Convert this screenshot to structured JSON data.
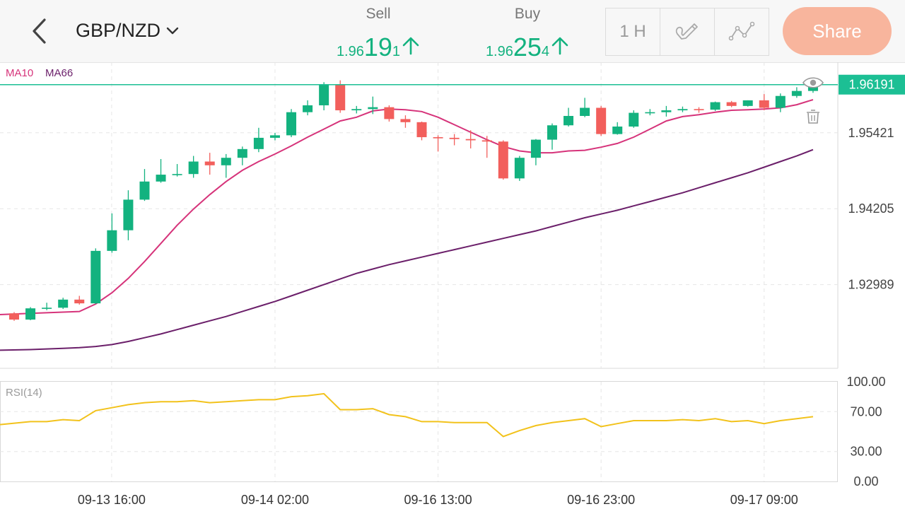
{
  "header": {
    "pair": "GBP/NZD",
    "sell": {
      "label": "Sell",
      "small": "1.96",
      "big": "19",
      "tail": "1"
    },
    "buy": {
      "label": "Buy",
      "small": "1.96",
      "big": "25",
      "tail": "4"
    },
    "interval": "1 H",
    "share_label": "Share"
  },
  "legend": {
    "ma10": "MA10",
    "ma66": "MA66"
  },
  "price_axis": {
    "current": "1.96191",
    "ticks": [
      "1.95421",
      "1.94205",
      "1.92989"
    ]
  },
  "rsi": {
    "label": "RSI(14)",
    "ticks": [
      "100.00",
      "70.00",
      "30.00",
      "0.00"
    ]
  },
  "time_axis": [
    "09-13 16:00",
    "09-14 02:00",
    "09-16 13:00",
    "09-16 23:00",
    "09-17 09:00"
  ],
  "colors": {
    "up": "#13b27f",
    "down": "#f25f5c",
    "ma10": "#d6337a",
    "ma66": "#6b1f6a",
    "rsi": "#f2c21b",
    "accent": "#1cbf94",
    "share": "#f8b59d"
  },
  "chart_data": [
    {
      "type": "candlestick",
      "title": "GBP/NZD 1H",
      "ylim": [
        1.9165,
        1.9655
      ],
      "current_price": 1.96191,
      "y_ticks": [
        1.95421,
        1.94205,
        1.92989
      ],
      "x_tick_labels": [
        "09-13 16:00",
        "09-14 02:00",
        "09-16 13:00",
        "09-16 23:00",
        "09-17 09:00"
      ],
      "candles": [
        [
          1.9253,
          1.9243,
          1.9255,
          1.9241
        ],
        [
          1.9243,
          1.9261,
          1.9263,
          1.9242
        ],
        [
          1.9261,
          1.9262,
          1.927,
          1.9258
        ],
        [
          1.9262,
          1.9275,
          1.9278,
          1.926
        ],
        [
          1.9275,
          1.9269,
          1.9281,
          1.9267
        ],
        [
          1.9269,
          1.9353,
          1.9357,
          1.9268
        ],
        [
          1.9353,
          1.9386,
          1.9413,
          1.935
        ],
        [
          1.9386,
          1.9435,
          1.945,
          1.937
        ],
        [
          1.9435,
          1.9464,
          1.9484,
          1.9433
        ],
        [
          1.9464,
          1.9475,
          1.95,
          1.9462
        ],
        [
          1.9475,
          1.9476,
          1.9492,
          1.9472
        ],
        [
          1.9476,
          1.9496,
          1.9505,
          1.947
        ],
        [
          1.9496,
          1.949,
          1.951,
          1.9475
        ],
        [
          1.949,
          1.9502,
          1.9508,
          1.947
        ],
        [
          1.9502,
          1.9516,
          1.952,
          1.949
        ],
        [
          1.9516,
          1.9534,
          1.955,
          1.9511
        ],
        [
          1.9534,
          1.9538,
          1.9542,
          1.953
        ],
        [
          1.9538,
          1.9575,
          1.958,
          1.9535
        ],
        [
          1.9575,
          1.9586,
          1.9594,
          1.957
        ],
        [
          1.9586,
          1.9619,
          1.9623,
          1.9578
        ],
        [
          1.9619,
          1.9578,
          1.9626,
          1.9574
        ],
        [
          1.9578,
          1.958,
          1.9585,
          1.9573
        ],
        [
          1.958,
          1.9583,
          1.96,
          1.9572
        ],
        [
          1.9583,
          1.9564,
          1.9586,
          1.956
        ],
        [
          1.9564,
          1.9559,
          1.957,
          1.955
        ],
        [
          1.9559,
          1.9535,
          1.956,
          1.953
        ],
        [
          1.9535,
          1.9534,
          1.9538,
          1.9512
        ],
        [
          1.9534,
          1.9532,
          1.954,
          1.9522
        ],
        [
          1.9532,
          1.953,
          1.9546,
          1.9517
        ],
        [
          1.953,
          1.9528,
          1.9537,
          1.9502
        ],
        [
          1.9528,
          1.9469,
          1.953,
          1.9467
        ],
        [
          1.9469,
          1.9502,
          1.9505,
          1.9465
        ],
        [
          1.9502,
          1.9531,
          1.9532,
          1.949
        ],
        [
          1.9531,
          1.9554,
          1.9557,
          1.9515
        ],
        [
          1.9554,
          1.9569,
          1.9582,
          1.9552
        ],
        [
          1.9569,
          1.9582,
          1.9598,
          1.9567
        ],
        [
          1.9582,
          1.954,
          1.9585,
          1.9537
        ],
        [
          1.954,
          1.9552,
          1.9559,
          1.9539
        ],
        [
          1.9552,
          1.9574,
          1.9578,
          1.955
        ],
        [
          1.9574,
          1.9575,
          1.958,
          1.957
        ],
        [
          1.9575,
          1.9578,
          1.9585,
          1.9568
        ],
        [
          1.9578,
          1.958,
          1.9584,
          1.9575
        ],
        [
          1.958,
          1.9579,
          1.9583,
          1.9574
        ],
        [
          1.9579,
          1.9591,
          1.9592,
          1.9577
        ],
        [
          1.9591,
          1.9585,
          1.9593,
          1.9583
        ],
        [
          1.9585,
          1.9594,
          1.9594,
          1.9584
        ],
        [
          1.9594,
          1.9582,
          1.9604,
          1.9578
        ],
        [
          1.9582,
          1.9601,
          1.9605,
          1.9575
        ],
        [
          1.9601,
          1.9609,
          1.9615,
          1.9598
        ],
        [
          1.9609,
          1.962,
          1.9625,
          1.9606
        ]
      ],
      "ma10": [
        1.9251,
        1.9253,
        1.9254,
        1.9255,
        1.9256,
        1.9268,
        1.9286,
        1.9309,
        1.9336,
        1.9365,
        1.9394,
        1.942,
        1.9443,
        1.9464,
        1.9482,
        1.9496,
        1.9508,
        1.9521,
        1.9535,
        1.9548,
        1.9561,
        1.9567,
        1.9577,
        1.958,
        1.9579,
        1.9576,
        1.9567,
        1.9555,
        1.9543,
        1.9531,
        1.952,
        1.9513,
        1.951,
        1.951,
        1.9513,
        1.9514,
        1.9519,
        1.9525,
        1.9535,
        1.9548,
        1.9561,
        1.9568,
        1.9571,
        1.9575,
        1.9578,
        1.9579,
        1.958,
        1.9582,
        1.9587,
        1.9595
      ],
      "ma66": [
        1.9194,
        1.9195,
        1.9196,
        1.9197,
        1.9198,
        1.92,
        1.9203,
        1.9208,
        1.9214,
        1.922,
        1.9227,
        1.9234,
        1.9241,
        1.9248,
        1.9256,
        1.9264,
        1.9272,
        1.9281,
        1.929,
        1.9299,
        1.9308,
        1.9317,
        1.9324,
        1.9331,
        1.9337,
        1.9343,
        1.9349,
        1.9355,
        1.9361,
        1.9367,
        1.9373,
        1.9379,
        1.9385,
        1.9392,
        1.9399,
        1.9406,
        1.9412,
        1.9418,
        1.9425,
        1.9432,
        1.9439,
        1.9446,
        1.9454,
        1.9462,
        1.947,
        1.9478,
        1.9487,
        1.9496,
        1.9505,
        1.9515
      ]
    },
    {
      "type": "line",
      "title": "RSI(14)",
      "ylim": [
        0,
        100
      ],
      "y_ticks": [
        100,
        70,
        30,
        0
      ],
      "values": [
        57,
        60,
        60,
        62,
        61,
        71,
        74,
        77,
        79,
        80,
        80,
        81,
        79,
        80,
        81,
        82,
        82,
        85,
        86,
        88,
        72,
        72,
        73,
        67,
        65,
        60,
        60,
        59,
        59,
        59,
        45,
        51,
        56,
        59,
        61,
        63,
        55,
        58,
        61,
        61,
        61,
        62,
        61,
        63,
        60,
        61,
        58,
        61,
        63,
        65
      ]
    }
  ]
}
